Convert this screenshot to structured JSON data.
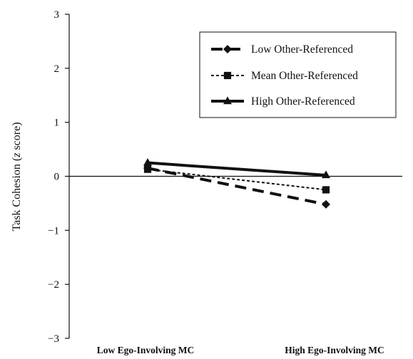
{
  "chart_data": {
    "type": "line",
    "title": "",
    "xlabel": "",
    "ylabel": "Task Cohesion (z score)",
    "ylabel_parts": {
      "prefix": "Task Cohesion (",
      "italic": "z",
      "suffix": " score)"
    },
    "categories": [
      "Low Ego-Involving MC",
      "High Ego-Involving MC"
    ],
    "ylim": [
      -3,
      3
    ],
    "yticks": [
      3,
      2,
      1,
      0,
      -1,
      -2,
      -3
    ],
    "ytick_labels": [
      "3",
      "2",
      "1",
      "0",
      "−1",
      "−2",
      "−3"
    ],
    "grid": false,
    "zero_line": true,
    "legend_position": "top-right",
    "series": [
      {
        "name": "Low Other-Referenced",
        "values": [
          0.15,
          -0.52
        ],
        "marker": "diamond",
        "line_style": "long-dash",
        "line_width": 4,
        "color": "#111111"
      },
      {
        "name": "Mean Other-Referenced",
        "values": [
          0.13,
          -0.25
        ],
        "marker": "square",
        "line_style": "short-dash",
        "line_width": 2,
        "color": "#111111"
      },
      {
        "name": "High Other-Referenced",
        "values": [
          0.25,
          0.02
        ],
        "marker": "triangle",
        "line_style": "solid",
        "line_width": 4,
        "color": "#111111"
      }
    ]
  }
}
